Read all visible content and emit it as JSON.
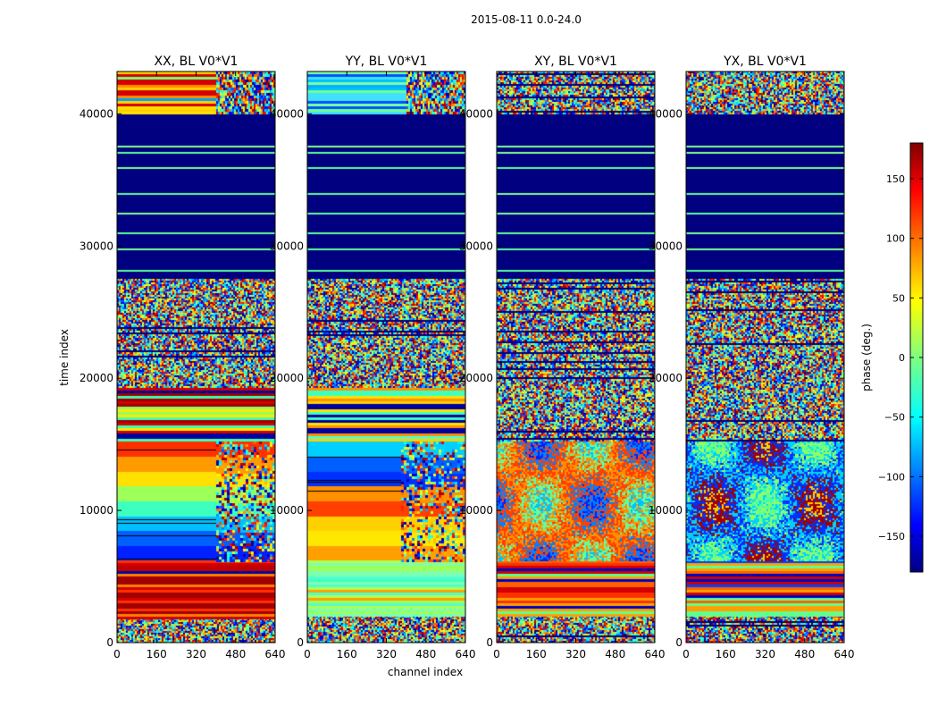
{
  "figure": {
    "suptitle": "2015-08-11 0.0-24.0"
  },
  "chart_data": {
    "type": "heatmap",
    "xlabel": "channel index",
    "ylabel": "time index",
    "xlim": [
      0,
      640
    ],
    "ylim": [
      0,
      43200
    ],
    "x_ticks": [
      0,
      160,
      320,
      480,
      640
    ],
    "y_ticks": [
      0,
      10000,
      20000,
      30000,
      40000
    ],
    "colormap": "jet",
    "colorbar": {
      "label": "phase (deg.)",
      "range": [
        -180,
        180
      ],
      "ticks": [
        -150,
        -100,
        -50,
        0,
        50,
        100,
        150
      ],
      "tick_labels": [
        "−150",
        "−100",
        "−50",
        "0",
        "50",
        "100",
        "150"
      ]
    },
    "panels": [
      {
        "title": "XX, BL V0*V1",
        "bands": [
          {
            "t": [
              0,
              1800
            ],
            "kind": "noise"
          },
          {
            "t": [
              1800,
              6200
            ],
            "kind": "stripes",
            "colors": [
              "#d40000",
              "#ff3000",
              "#a00000",
              "#ff8000",
              "#0000a0",
              "#c00000"
            ]
          },
          {
            "t": [
              6200,
              15200
            ],
            "kind": "smooth",
            "colors": [
              "#ff3000",
              "#ff9a00",
              "#ffe000",
              "#9cff5a",
              "#3cffc0",
              "#00c0ff",
              "#0060ff",
              "#0020ff"
            ],
            "noise_from_x": 400
          },
          {
            "t": [
              15200,
              19300
            ],
            "kind": "stripes",
            "colors": [
              "#a00000",
              "#40ffb0",
              "#ffea00",
              "#0000a0",
              "#d40000",
              "#90ff60"
            ]
          },
          {
            "t": [
              19300,
              27500
            ],
            "kind": "noise"
          },
          {
            "t": [
              27500,
              40000
            ],
            "kind": "solid",
            "color": "#000080",
            "lines": [
              28200,
              29800,
              31000,
              32500,
              34000,
              36000,
              37100,
              37600
            ]
          },
          {
            "t": [
              40000,
              43200
            ],
            "kind": "stripes",
            "colors": [
              "#ffd000",
              "#ff8c00",
              "#d40000",
              "#7cff7c",
              "#ffe000",
              "#00a0ff"
            ],
            "noise_from_x": 400
          }
        ]
      },
      {
        "title": "YY, BL V0*V1",
        "bands": [
          {
            "t": [
              0,
              2000
            ],
            "kind": "noise"
          },
          {
            "t": [
              2000,
              6200
            ],
            "kind": "stripes",
            "colors": [
              "#7cffb0",
              "#b0ff50",
              "#50ffd0",
              "#ffa000",
              "#9cff5a",
              "#40ffc0"
            ]
          },
          {
            "t": [
              6200,
              15200
            ],
            "kind": "smooth",
            "colors": [
              "#00d0ff",
              "#0060ff",
              "#0030ff",
              "#ff9000",
              "#ff4000",
              "#ffd000",
              "#ffe800",
              "#ffa000"
            ],
            "noise_from_x": 380
          },
          {
            "t": [
              15200,
              19300
            ],
            "kind": "stripes",
            "colors": [
              "#ffd000",
              "#40ffc0",
              "#ffe000",
              "#0000a0",
              "#50ffd0",
              "#ff9000"
            ]
          },
          {
            "t": [
              19300,
              27500
            ],
            "kind": "noise"
          },
          {
            "t": [
              27500,
              40000
            ],
            "kind": "solid",
            "color": "#000080",
            "lines": [
              28200,
              29800,
              31000,
              32500,
              34000,
              36000,
              37100,
              37600
            ]
          },
          {
            "t": [
              40000,
              43200
            ],
            "kind": "stripes",
            "colors": [
              "#00b0ff",
              "#40e0ff",
              "#0050ff",
              "#80ffa0",
              "#00c0ff",
              "#70ff90"
            ],
            "noise_from_x": 400
          }
        ]
      },
      {
        "title": "XY, BL V0*V1",
        "bands": [
          {
            "t": [
              0,
              2000
            ],
            "kind": "noise"
          },
          {
            "t": [
              2000,
              6200
            ],
            "kind": "stripes",
            "colors": [
              "#ff6000",
              "#0000c0",
              "#ffa000",
              "#ff3000",
              "#60ff90",
              "#d00000"
            ]
          },
          {
            "t": [
              6200,
              15200
            ],
            "kind": "blobs",
            "colors": [
              "#0020ff",
              "#0080ff",
              "#ff4000",
              "#ff9000",
              "#60ffa0",
              "#00c0ff"
            ]
          },
          {
            "t": [
              15200,
              19300
            ],
            "kind": "noise"
          },
          {
            "t": [
              19300,
              27500
            ],
            "kind": "noise"
          },
          {
            "t": [
              27500,
              40000
            ],
            "kind": "solid",
            "color": "#000080",
            "lines": [
              28200,
              29800,
              31000,
              32500,
              34000,
              36000,
              37100,
              37600
            ]
          },
          {
            "t": [
              40000,
              43200
            ],
            "kind": "noise"
          }
        ]
      },
      {
        "title": "YX, BL V0*V1",
        "bands": [
          {
            "t": [
              0,
              2000
            ],
            "kind": "noise"
          },
          {
            "t": [
              2000,
              6200
            ],
            "kind": "stripes",
            "colors": [
              "#ff6000",
              "#0000c0",
              "#ffa000",
              "#0040ff",
              "#60ff90",
              "#d00000"
            ]
          },
          {
            "t": [
              6200,
              15200
            ],
            "kind": "blobs",
            "colors": [
              "#40ffb0",
              "#90ff60",
              "#00d0ff",
              "#0030ff",
              "#a00000",
              "#ffd000"
            ]
          },
          {
            "t": [
              15200,
              19300
            ],
            "kind": "noise"
          },
          {
            "t": [
              19300,
              27500
            ],
            "kind": "noise"
          },
          {
            "t": [
              27500,
              40000
            ],
            "kind": "solid",
            "color": "#000080",
            "lines": [
              28200,
              29800,
              31000,
              32500,
              34000,
              36000,
              37100,
              37600
            ]
          },
          {
            "t": [
              40000,
              43200
            ],
            "kind": "noise"
          }
        ]
      }
    ]
  }
}
